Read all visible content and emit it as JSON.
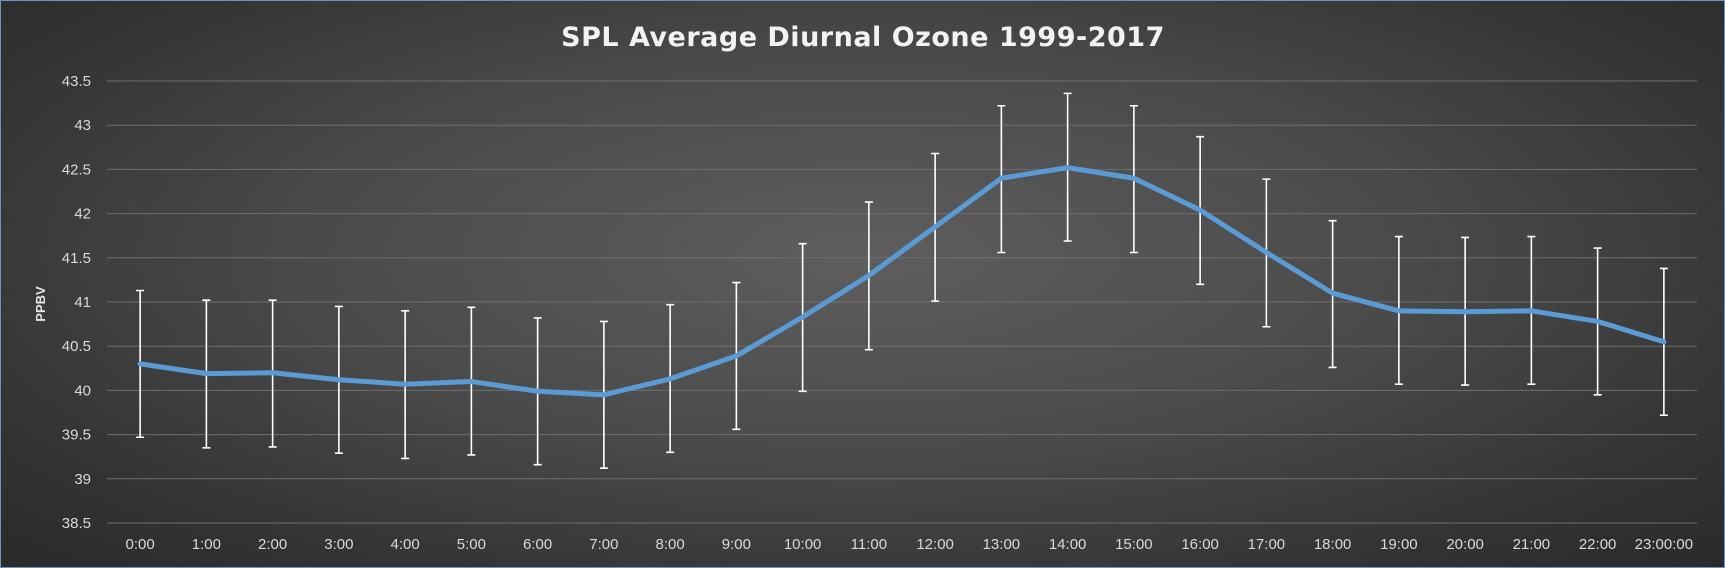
{
  "chart_data": {
    "type": "line",
    "title": "SPL Average Diurnal Ozone 1999-2017",
    "xlabel": "",
    "ylabel": "PPBV",
    "ylim": [
      38.5,
      43.5
    ],
    "ytick_step": 0.5,
    "ytick_labels": [
      "38.5",
      "39",
      "39.5",
      "40",
      "40.5",
      "41",
      "41.5",
      "42",
      "42.5",
      "43",
      "43.5"
    ],
    "grid": true,
    "legend": "none",
    "categories": [
      "0:00",
      "1:00",
      "2:00",
      "3:00",
      "4:00",
      "5:00",
      "6:00",
      "7:00",
      "8:00",
      "9:00",
      "10:00",
      "11:00",
      "12:00",
      "13:00",
      "14:00",
      "15:00",
      "16:00",
      "17:00",
      "18:00",
      "19:00",
      "20:00",
      "21:00",
      "22:00",
      "23:00:00"
    ],
    "series": [
      {
        "values": [
          40.3,
          40.19,
          40.2,
          40.12,
          40.07,
          40.1,
          39.99,
          39.95,
          40.13,
          40.39,
          40.83,
          41.3,
          41.85,
          42.4,
          42.52,
          42.4,
          42.04,
          41.56,
          41.1,
          40.9,
          40.89,
          40.9,
          40.78,
          40.55
        ],
        "error_low": [
          39.47,
          39.35,
          39.36,
          39.29,
          39.23,
          39.27,
          39.16,
          39.12,
          39.3,
          39.56,
          39.99,
          40.46,
          41.01,
          41.56,
          41.69,
          41.56,
          41.2,
          40.72,
          40.26,
          40.07,
          40.06,
          40.07,
          39.95,
          39.72
        ],
        "error_high": [
          41.13,
          41.02,
          41.02,
          40.95,
          40.9,
          40.94,
          40.82,
          40.78,
          40.97,
          41.22,
          41.66,
          42.13,
          42.68,
          43.22,
          43.36,
          43.22,
          42.87,
          42.39,
          41.92,
          41.74,
          41.73,
          41.74,
          41.61,
          41.38
        ],
        "color": "#5b9bd5",
        "error_bar_color": "#ffffff"
      }
    ]
  }
}
